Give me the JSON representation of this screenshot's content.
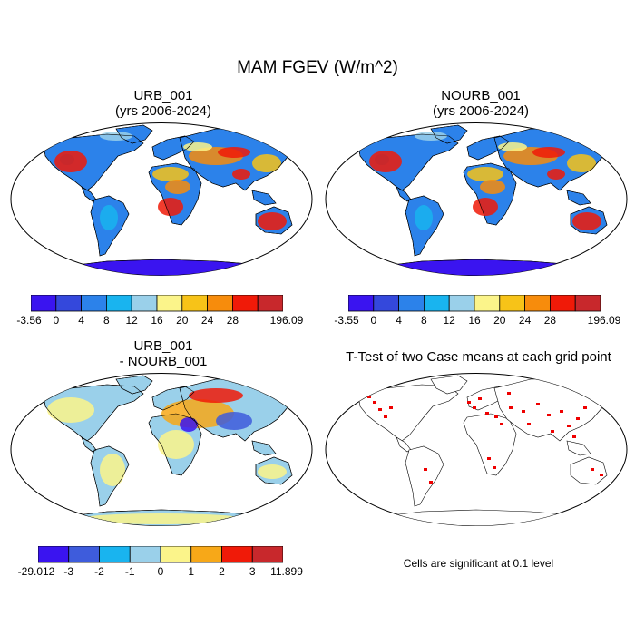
{
  "figure": {
    "title": "MAM FGEV (W/m^2)",
    "note": "Cells are significant at 0.1 level"
  },
  "palette": {
    "main": [
      "#3a14f0",
      "#3448dc",
      "#2c82ea",
      "#19b4ef",
      "#9ad0ea",
      "#fbf48a",
      "#f7c318",
      "#f78c0c",
      "#f01a08",
      "#c8282c"
    ],
    "diff": [
      "#3a14f0",
      "#3e5cdc",
      "#19b4ef",
      "#9ad0ea",
      "#fbf48a",
      "#f7a818",
      "#f01a08",
      "#c8282c"
    ],
    "land_fill": "#2c82ea",
    "antarctica_fill": "#3a14f0",
    "sig_fill": "#ee0000"
  },
  "chart_data": [
    {
      "type": "heatmap",
      "title": "URB_001",
      "subtitle": "(yrs 2006-2024)",
      "projection": "Robinson",
      "colorbar": {
        "labels": [
          "-3.56",
          "0",
          "4",
          "8",
          "12",
          "16",
          "20",
          "24",
          "28",
          "196.09"
        ],
        "colors": 10
      }
    },
    {
      "type": "heatmap",
      "title": "NOURB_001",
      "subtitle": "(yrs 2006-2024)",
      "projection": "Robinson",
      "colorbar": {
        "labels": [
          "-3.55",
          "0",
          "4",
          "8",
          "12",
          "16",
          "20",
          "24",
          "28",
          "196.09"
        ],
        "colors": 10
      }
    },
    {
      "type": "heatmap",
      "title": "URB_001",
      "subtitle": "- NOURB_001",
      "projection": "Robinson",
      "colorbar": {
        "labels": [
          "-29.012",
          "-3",
          "-2",
          "-1",
          "0",
          "1",
          "2",
          "3",
          "11.899"
        ],
        "colors": 8
      }
    },
    {
      "type": "heatmap",
      "title": "T-Test of two Case means at each grid point",
      "subtitle": "",
      "projection": "Robinson",
      "significance_level": 0.1
    }
  ]
}
